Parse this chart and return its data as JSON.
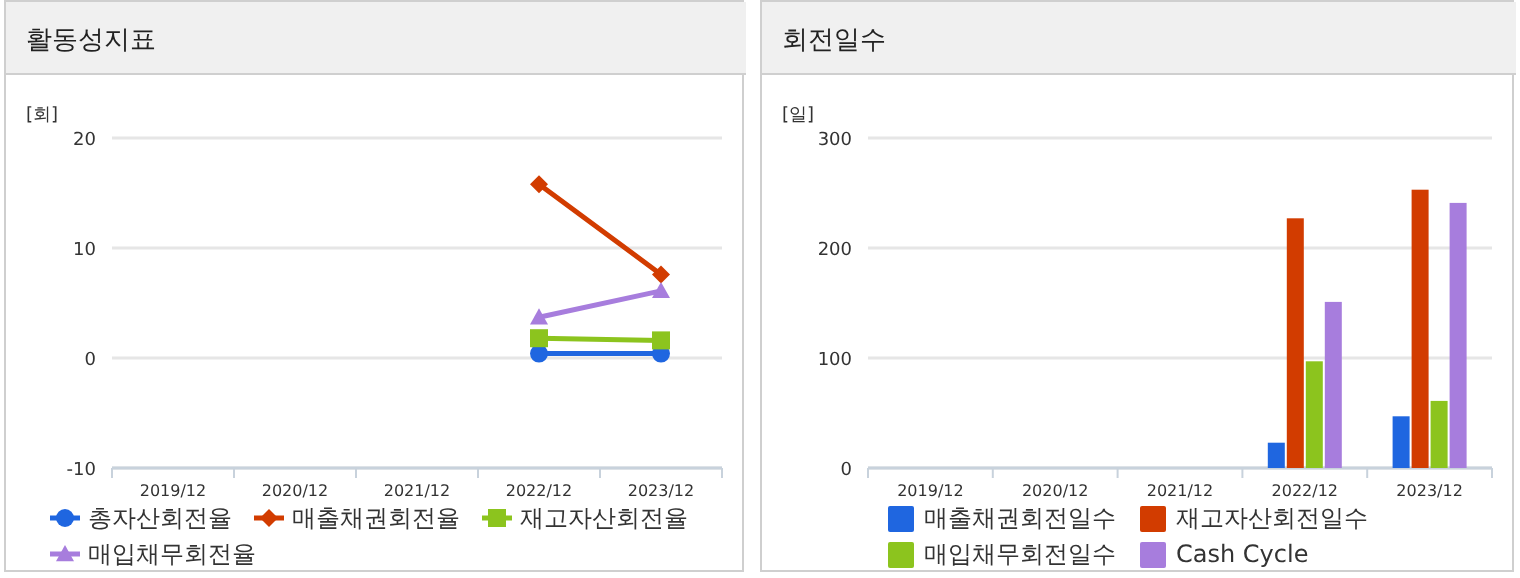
{
  "chart_data": [
    {
      "type": "line",
      "title": "활동성지표",
      "ylabel": "[회]",
      "categories": [
        "2019/12",
        "2020/12",
        "2021/12",
        "2022/12",
        "2023/12"
      ],
      "ylim": [
        -10,
        20
      ],
      "yticks": [
        -10,
        0,
        10,
        20
      ],
      "grid": "y",
      "legend": "bottom",
      "series": [
        {
          "name": "총자산회전율",
          "color": "#1f66e0",
          "marker": "circle",
          "values": [
            null,
            null,
            null,
            0.4,
            0.4
          ]
        },
        {
          "name": "매출채권회전율",
          "color": "#d23c00",
          "marker": "diamond",
          "values": [
            null,
            null,
            null,
            15.8,
            7.6
          ]
        },
        {
          "name": "재고자산회전율",
          "color": "#8cc41e",
          "marker": "square",
          "values": [
            null,
            null,
            null,
            1.8,
            1.6
          ]
        },
        {
          "name": "매입채무회전율",
          "color": "#a77ddd",
          "marker": "triangle",
          "values": [
            null,
            null,
            null,
            3.7,
            6.1
          ]
        }
      ]
    },
    {
      "type": "bar",
      "title": "회전일수",
      "ylabel": "[일]",
      "categories": [
        "2019/12",
        "2020/12",
        "2021/12",
        "2022/12",
        "2023/12"
      ],
      "ylim": [
        0,
        300
      ],
      "yticks": [
        0,
        100,
        200,
        300
      ],
      "grid": "y",
      "legend": "bottom",
      "series": [
        {
          "name": "매출채권회전일수",
          "color": "#1f66e0",
          "values": [
            null,
            null,
            null,
            23,
            47
          ]
        },
        {
          "name": "재고자산회전일수",
          "color": "#d23c00",
          "values": [
            null,
            null,
            null,
            227,
            253
          ]
        },
        {
          "name": "매입채무회전일수",
          "color": "#8cc41e",
          "values": [
            null,
            null,
            null,
            97,
            61
          ]
        },
        {
          "name": "Cash Cycle",
          "color": "#a77ddd",
          "values": [
            null,
            null,
            null,
            151,
            241
          ]
        }
      ]
    }
  ]
}
